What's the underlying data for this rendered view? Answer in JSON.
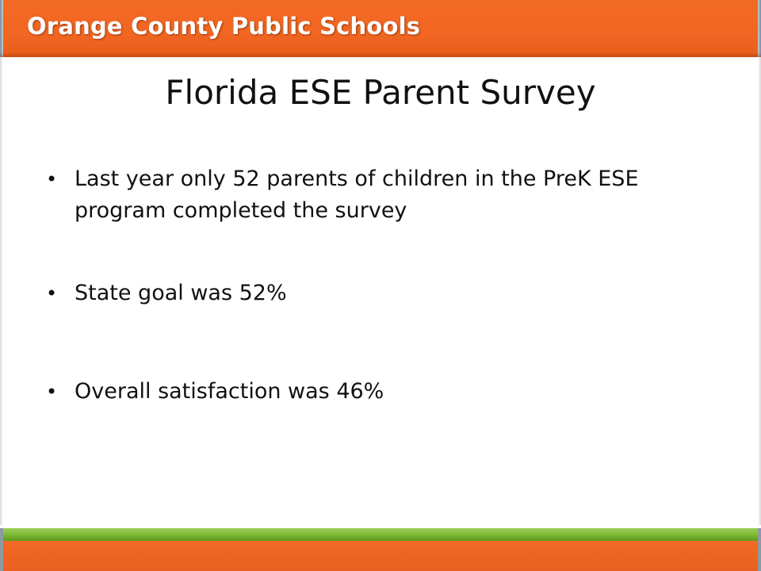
{
  "header": {
    "brand": "Orange County Public Schools"
  },
  "slide": {
    "title": "Florida ESE Parent Survey",
    "bullets": [
      "Last year only 52 parents of children in the PreK ESE program completed the survey",
      "State goal was 52%",
      "Overall satisfaction was 46%"
    ],
    "bullet_glyph": "•"
  },
  "colors": {
    "header_orange": "#f16622",
    "footer_green": "#79b530",
    "text": "#111111"
  }
}
